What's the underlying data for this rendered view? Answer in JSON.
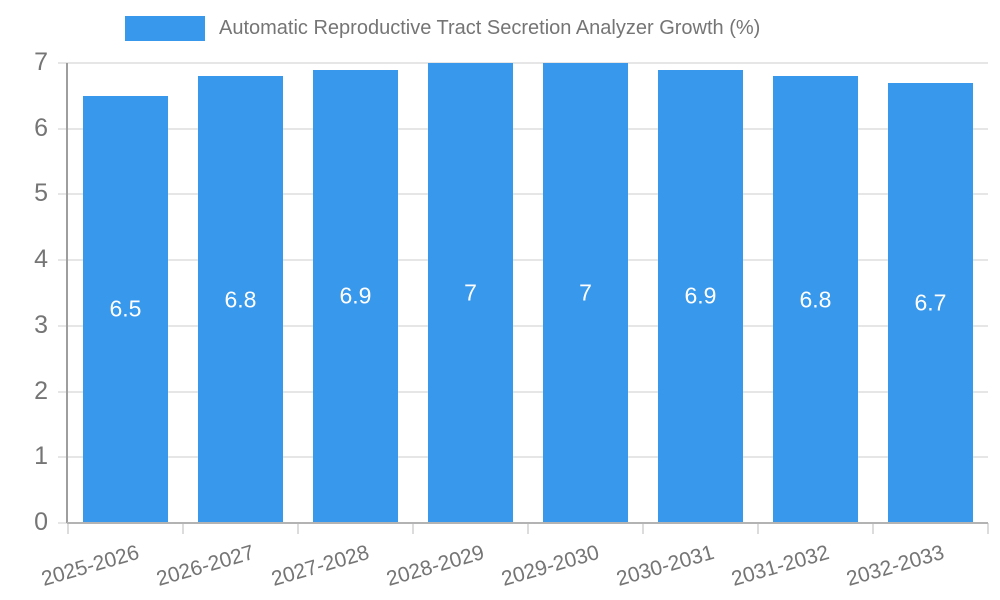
{
  "chart_data": {
    "type": "bar",
    "title": "Automatic Reproductive Tract Secretion Analyzer Growth (%)",
    "categories": [
      "2025-2026",
      "2026-2027",
      "2027-2028",
      "2028-2029",
      "2029-2030",
      "2030-2031",
      "2031-2032",
      "2032-2033"
    ],
    "values": [
      6.5,
      6.8,
      6.9,
      7,
      7,
      6.9,
      6.8,
      6.7
    ],
    "value_labels": [
      "6.5",
      "6.8",
      "6.9",
      "7",
      "7",
      "6.9",
      "6.8",
      "6.7"
    ],
    "y_ticks": [
      0,
      1,
      2,
      3,
      4,
      5,
      6,
      7
    ],
    "ylim": [
      0,
      7
    ],
    "xlabel": "",
    "ylabel": "",
    "grid": true,
    "legend_position": "top",
    "legend": [
      {
        "label": "Automatic Reproductive Tract Secretion Analyzer Growth (%)",
        "color": "#3898EC"
      }
    ],
    "colors": {
      "bar": "#3898EC",
      "grid": "#e6e6e6",
      "y_axis": "#9e9e9e",
      "x_axis": "#b3b3b3",
      "x_tick": "#dcdcdc",
      "tick_text": "#757575",
      "legend_text": "#757575",
      "bar_label_text": "#ffffff",
      "background": "#ffffff"
    }
  }
}
